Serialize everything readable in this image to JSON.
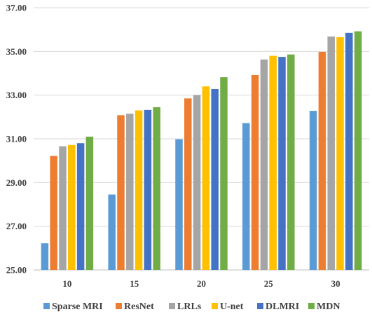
{
  "chart_data": {
    "type": "bar",
    "title": "",
    "xlabel": "",
    "ylabel": "",
    "categories": [
      "10",
      "15",
      "20",
      "25",
      "30"
    ],
    "ylim": [
      25.0,
      37.0
    ],
    "yticks": [
      "25.00",
      "27.00",
      "29.00",
      "31.00",
      "33.00",
      "35.00",
      "37.00"
    ],
    "grid": "horizontal",
    "legend": "bottom",
    "series": [
      {
        "name": "Sparse MRI",
        "color": "#5b9bd5",
        "values": [
          26.22,
          28.45,
          30.98,
          31.72,
          32.28
        ]
      },
      {
        "name": "ResNet",
        "color": "#ed7d31",
        "values": [
          30.22,
          32.08,
          32.85,
          33.92,
          34.98
        ]
      },
      {
        "name": "LRLs",
        "color": "#a5a5a5",
        "values": [
          30.66,
          32.15,
          33.0,
          34.63,
          35.68
        ]
      },
      {
        "name": "U-net",
        "color": "#ffc000",
        "values": [
          30.72,
          32.3,
          33.4,
          34.8,
          35.65
        ]
      },
      {
        "name": "DLMRI",
        "color": "#4472c4",
        "values": [
          30.8,
          32.32,
          33.28,
          34.75,
          35.85
        ]
      },
      {
        "name": "MDN",
        "color": "#70ad47",
        "values": [
          31.1,
          32.45,
          33.82,
          34.86,
          35.92
        ]
      }
    ]
  }
}
